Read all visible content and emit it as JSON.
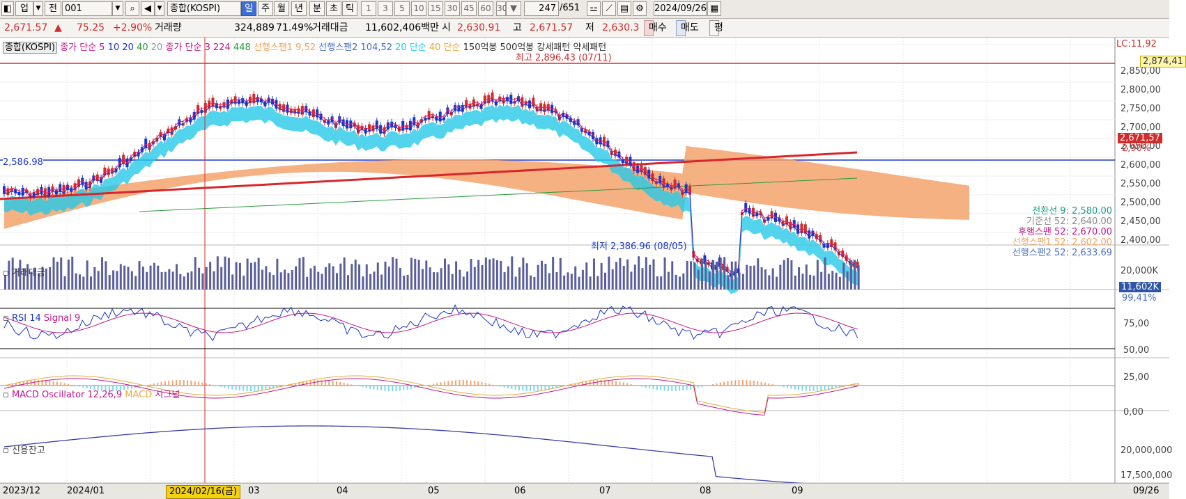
{
  "toolbar": {
    "market": "업",
    "market_type": "전",
    "code": "001",
    "name": "종합(KOSPI)",
    "periods": [
      "일",
      "주",
      "월",
      "년",
      "분",
      "초",
      "틱"
    ],
    "period_selected": "일",
    "minutes": [
      "1",
      "3",
      "5",
      "10",
      "15",
      "30",
      "45",
      "60"
    ],
    "minute_select": "30",
    "count": "247",
    "total": "/651",
    "date": "2024/09/26"
  },
  "quote": {
    "price": "2,671.57",
    "arrow": "▲",
    "change": "75.25",
    "pct": "+2.90%",
    "volume_label": "거래량",
    "volume": "324,889",
    "volume_pct": "71.49%",
    "amount_label": "거래대금",
    "amount": "11,602,406백만",
    "open_label": "시",
    "open": "2,630.91",
    "high_label": "고",
    "high": "2,671.57",
    "low_label": "저",
    "low": "2,630.3",
    "buy": "매수",
    "sell": "매도",
    "eval": "평"
  },
  "legend_main": {
    "name": "종합(KOSPI)",
    "ma_label": "종가 단순 5",
    "ma10": "10",
    "ma20": "20",
    "ma40": "40",
    "ma2_prefix": "20",
    "ma2_label": "종가 단순 3",
    "ma224": "224",
    "ma448": "448",
    "span1": "선행스팬1 9,52",
    "span2": "선행스팬2 104,52",
    "ma20b": "20 단순",
    "ma40b": "40 단순",
    "pattern": "150억봉 500억봉 강세패턴  약세패턴"
  },
  "annotations": {
    "high": "최고 2,896.43 (07/11)",
    "low": "최저 2,386.96 (08/05)",
    "left_level": "2,586.98",
    "ichimoku": [
      {
        "label": "전환선 9: 2,5",
        "value": "80.00",
        "color": "#1a9a85"
      },
      {
        "label": "기준선 52: 2,6",
        "value": "40.00",
        "color": "#8a8a8a"
      },
      {
        "label": "후행스팬 52: 2,6",
        "value": "70.00",
        "color": "#c2188a"
      },
      {
        "label": "선행스팬1 52: 2,6",
        "value": "02.00",
        "color": "#f2a45c"
      },
      {
        "label": "선행스팬2 52: 2,6",
        "value": "33.69",
        "color": "#4a6ec8"
      }
    ]
  },
  "price_axis": {
    "top_label": "LC:11,92",
    "ticks": [
      "2,850,00",
      "2,800,00",
      "2,750,00",
      "2,700,00",
      "2,650,00",
      "2,600,00",
      "2,550,00",
      "2,500,00",
      "2,450,00",
      "2,400,00"
    ],
    "tag_high": "2,874,41",
    "tag_current": "2,671,57",
    "tag_pct": "2,90%"
  },
  "panels": {
    "volume": {
      "title": "거래대금",
      "tick_top": "20,000K",
      "tag": "11,602K",
      "pct": "99,41%"
    },
    "rsi": {
      "title": "RSI 14",
      "signal": "Signal 9",
      "ticks": [
        "75,00",
        "50,00",
        "25,00"
      ]
    },
    "macd": {
      "title": "MACD Oscillator 12,26,9",
      "macd": "MACD",
      "signal": "시그널",
      "tick": "0,00"
    },
    "credit": {
      "title": "신용잔고",
      "ticks": [
        "20,000,000",
        "17,500,000"
      ]
    }
  },
  "xaxis": {
    "labels": [
      {
        "text": "2023/12"
      },
      {
        "text": "2024/01"
      },
      {
        "text": "03"
      },
      {
        "text": "04"
      },
      {
        "text": "05"
      },
      {
        "text": "06"
      },
      {
        "text": "07"
      },
      {
        "text": "08"
      },
      {
        "text": "09"
      },
      {
        "text": "09/26"
      }
    ],
    "selected": "2024/02/16(금)"
  },
  "colors": {
    "ma5": "#e8175d",
    "ma10": "#1a36c8",
    "ma20": "#28c9e8",
    "ma40": "#e8a93a",
    "ma224": "#d8262b",
    "ma448": "#2a9c3c",
    "cloud_up": "#f4a36d",
    "cloud_dn": "#6e8de0",
    "cross": "#d32f2f"
  }
}
